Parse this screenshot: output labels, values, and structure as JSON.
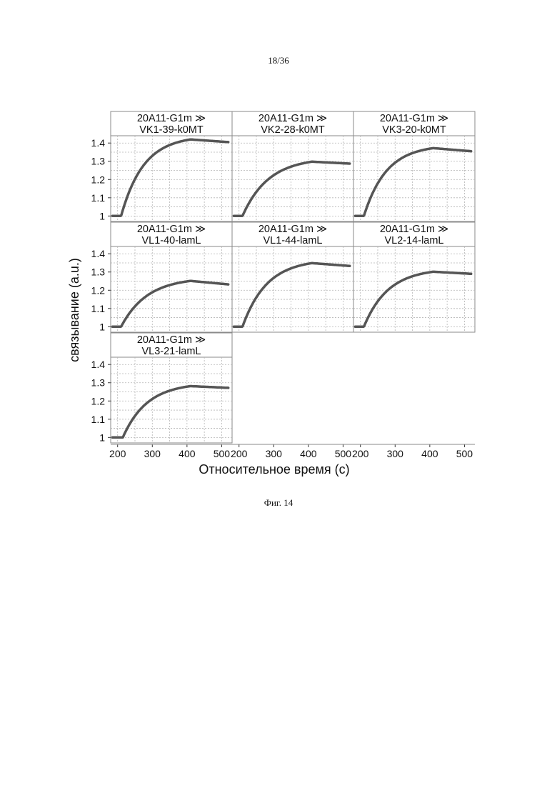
{
  "page": {
    "number": "18/36",
    "caption": "Фиг. 14"
  },
  "chart_data": {
    "type": "line",
    "layout": "faceted-grid",
    "xlabel": "Относительное время (с)",
    "ylabel": "связывание (a.u.)",
    "xlim": [
      180,
      530
    ],
    "ylim": [
      0.97,
      1.44
    ],
    "x_ticks": [
      200,
      300,
      400,
      500
    ],
    "y_ticks": [
      1,
      1.1,
      1.2,
      1.3,
      1.4
    ],
    "y_tick_labels": [
      "1",
      "1.1",
      "1.2",
      "1.3",
      "1.4"
    ],
    "grid": true,
    "panels": [
      {
        "title_line1": "20A11-G1m ≫",
        "title_line2": "VK1-39-k0MT",
        "baseline_until": 210,
        "dissociation_start": 410,
        "plateau": 1.44,
        "tau": 65,
        "end_value": 1.405,
        "x": [
          185,
          210,
          230,
          260,
          300,
          350,
          410,
          450,
          520
        ],
        "y": [
          1.0,
          1.0,
          1.19,
          1.28,
          1.34,
          1.38,
          1.41,
          1.41,
          1.405
        ]
      },
      {
        "title_line1": "20A11-G1m ≫",
        "title_line2": "VK2-28-k0MT",
        "baseline_until": 210,
        "dissociation_start": 410,
        "plateau": 1.32,
        "tau": 75,
        "end_value": 1.287,
        "x": [
          185,
          210,
          230,
          260,
          300,
          350,
          410,
          450,
          520
        ],
        "y": [
          1.0,
          1.0,
          1.08,
          1.16,
          1.23,
          1.27,
          1.295,
          1.292,
          1.287
        ]
      },
      {
        "title_line1": "20A11-G1m ≫",
        "title_line2": "VK3-20-k0MT",
        "baseline_until": 210,
        "dissociation_start": 410,
        "plateau": 1.39,
        "tau": 65,
        "end_value": 1.355,
        "x": [
          185,
          210,
          230,
          260,
          300,
          350,
          410,
          450,
          520
        ],
        "y": [
          1.0,
          1.0,
          1.16,
          1.25,
          1.31,
          1.345,
          1.37,
          1.363,
          1.355
        ]
      },
      {
        "title_line1": "20A11-G1m ≫",
        "title_line2": "VL1-40-lamL",
        "baseline_until": 210,
        "dissociation_start": 410,
        "plateau": 1.27,
        "tau": 75,
        "end_value": 1.232,
        "x": [
          185,
          210,
          230,
          260,
          300,
          350,
          410,
          450,
          520
        ],
        "y": [
          1.0,
          1.0,
          1.07,
          1.14,
          1.19,
          1.22,
          1.242,
          1.238,
          1.232
        ]
      },
      {
        "title_line1": "20A11-G1m ≫",
        "title_line2": "VL1-44-lamL",
        "baseline_until": 210,
        "dissociation_start": 410,
        "plateau": 1.37,
        "tau": 70,
        "end_value": 1.333,
        "x": [
          185,
          210,
          230,
          260,
          300,
          350,
          410,
          450,
          520
        ],
        "y": [
          1.0,
          1.0,
          1.1,
          1.2,
          1.27,
          1.31,
          1.34,
          1.336,
          1.333
        ]
      },
      {
        "title_line1": "20A11-G1m ≫",
        "title_line2": "VL2-14-lamL",
        "baseline_until": 210,
        "dissociation_start": 410,
        "plateau": 1.32,
        "tau": 70,
        "end_value": 1.29,
        "x": [
          185,
          210,
          230,
          260,
          300,
          350,
          410,
          450,
          520
        ],
        "y": [
          1.0,
          1.0,
          1.1,
          1.18,
          1.24,
          1.275,
          1.3,
          1.296,
          1.29
        ]
      },
      {
        "title_line1": "20A11-G1m ≫",
        "title_line2": "VL3-21-lamL",
        "baseline_until": 215,
        "dissociation_start": 410,
        "plateau": 1.3,
        "tau": 70,
        "end_value": 1.272,
        "x": [
          185,
          205,
          215,
          240,
          280,
          340,
          410,
          450,
          520
        ],
        "y": [
          1.0,
          1.0,
          0.99,
          1.12,
          1.2,
          1.25,
          1.28,
          1.277,
          1.272
        ]
      }
    ],
    "line_color": "#555555",
    "grid_color": "#b5b5b5",
    "frame_color": "#8a8a8a"
  }
}
